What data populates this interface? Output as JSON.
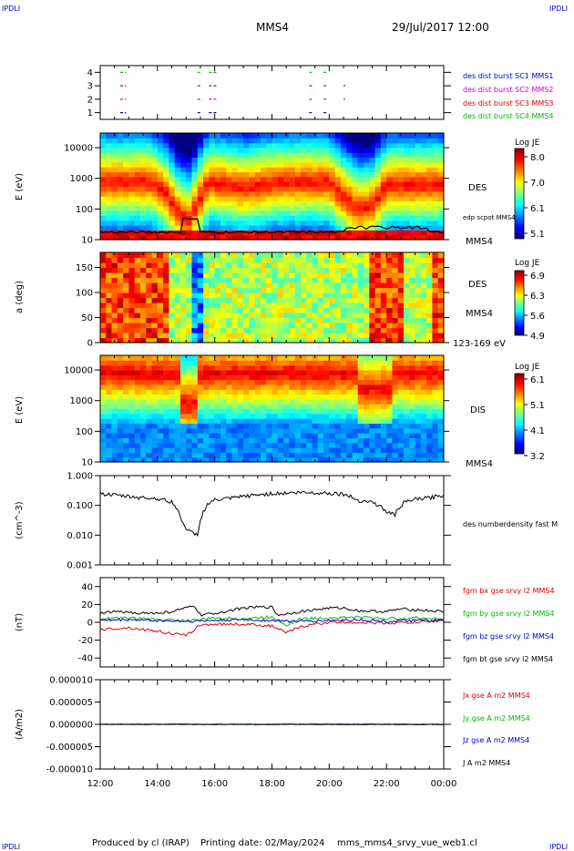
{
  "corner_labels": {
    "top_left": "IPDLI",
    "top_right": "IPDLI",
    "bottom_left": "IPDLI",
    "bottom_right": "IPDLI"
  },
  "header": {
    "spacecraft": "MMS4",
    "datetime": "29/Jul/2017 12:00"
  },
  "footer": {
    "produced_by": "Produced by cl (IRAP)",
    "printing_date": "Printing date: 02/May/2024",
    "script_name": "mms_mms4_srvy_vue_web1.cl"
  },
  "colors": {
    "blue": "#0000cc",
    "magenta": "#cc00cc",
    "red": "#dd0000",
    "green": "#00bb00",
    "black": "#000000"
  },
  "chart_data": [
    {
      "type": "scatter",
      "panel": "burst-availability",
      "ylim": [
        0.5,
        4.5
      ],
      "yticks": [
        "1",
        "2",
        "3",
        "4"
      ],
      "x_hours": [
        12,
        24
      ],
      "series": [
        {
          "name": "des dist burst SC1 MMS1",
          "row": 1,
          "color": "#0000cc",
          "segments": [
            [
              12.7,
              12.9
            ],
            [
              15.4,
              15.5
            ],
            [
              15.8,
              16.1
            ],
            [
              19.3,
              19.4
            ],
            [
              19.8,
              19.9
            ]
          ]
        },
        {
          "name": "des dist burst SC2 MMS2",
          "row": 2,
          "color": "#cc00cc",
          "segments": [
            [
              12.7,
              12.9
            ],
            [
              15.4,
              15.5
            ],
            [
              15.8,
              16.1
            ],
            [
              19.3,
              19.4
            ],
            [
              19.8,
              19.9
            ],
            [
              20.5,
              20.55
            ]
          ]
        },
        {
          "name": "des dist burst SC3 MMS3",
          "row": 3,
          "color": "#dd0000",
          "segments": [
            [
              12.7,
              12.9
            ],
            [
              15.4,
              15.5
            ],
            [
              15.8,
              16.1
            ],
            [
              19.3,
              19.4
            ],
            [
              19.8,
              19.9
            ],
            [
              20.5,
              20.55
            ]
          ]
        },
        {
          "name": "des dist burst SC4 MMS4",
          "row": 4,
          "color": "#00bb00",
          "segments": [
            [
              12.7,
              12.9
            ],
            [
              15.4,
              15.5
            ],
            [
              15.8,
              16.1
            ],
            [
              19.3,
              19.4
            ],
            [
              19.8,
              19.9
            ]
          ]
        }
      ]
    },
    {
      "type": "heatmap",
      "panel": "des-energy-spectrogram",
      "ylabel": "E (eV)",
      "yscale": "log",
      "ylim": [
        10,
        30000
      ],
      "yticks": [
        "10",
        "100",
        "1000",
        "10000"
      ],
      "instrument": "DES",
      "spacecraft": "MMS4",
      "overlay": "edp scpot MMS4",
      "colorbar": {
        "title": "Log JE",
        "range": [
          5.1,
          8.1
        ],
        "ticks": [
          "8.0",
          "7.0",
          "6.1",
          "5.1"
        ]
      },
      "profile": {
        "times": [
          12.0,
          13.8,
          14.3,
          14.8,
          15.1,
          15.4,
          15.8,
          17.0,
          18.2,
          20.0,
          20.4,
          21.0,
          21.5,
          22.0,
          22.6,
          24.0
        ],
        "peak_log_energy": [
          2.9,
          2.9,
          2.5,
          1.8,
          1.7,
          2.2,
          2.9,
          2.7,
          2.9,
          2.9,
          2.5,
          2.0,
          2.1,
          2.8,
          2.8,
          2.8
        ]
      }
    },
    {
      "type": "heatmap",
      "panel": "des-pitch-angle",
      "ylabel": "a (deg)",
      "ylim": [
        0,
        180
      ],
      "yticks": [
        "0",
        "50",
        "100",
        "150"
      ],
      "instrument": "DES",
      "spacecraft": "MMS4",
      "energy_range": "123-169 eV",
      "colorbar": {
        "title": "Log JE",
        "range": [
          4.9,
          6.9
        ],
        "ticks": [
          "6.9",
          "6.3",
          "5.6",
          "4.9"
        ]
      }
    },
    {
      "type": "heatmap",
      "panel": "dis-energy-spectrogram",
      "ylabel": "E (eV)",
      "yscale": "log",
      "ylim": [
        10,
        30000
      ],
      "yticks": [
        "10",
        "100",
        "1000",
        "10000"
      ],
      "instrument": "DIS",
      "spacecraft": "MMS4",
      "colorbar": {
        "title": "Log JE",
        "range": [
          3.2,
          6.1
        ],
        "ticks": [
          "6.1",
          "5.1",
          "4.1",
          "3.2"
        ]
      }
    },
    {
      "type": "line",
      "panel": "number-density",
      "ylabel": "(cm^-3)",
      "yscale": "log",
      "ylim": [
        0.001,
        1.0
      ],
      "yticks": [
        "1.000",
        "0.100",
        "0.010",
        "0.001"
      ],
      "series": [
        {
          "name": "des numberdensity fast M",
          "color": "#000000",
          "x": [
            12.0,
            12.5,
            13.0,
            13.5,
            14.0,
            14.5,
            14.8,
            15.0,
            15.2,
            15.4,
            15.5,
            15.8,
            16.0,
            16.5,
            17.0,
            18.0,
            19.0,
            20.0,
            20.5,
            21.0,
            21.5,
            22.0,
            22.3,
            22.6,
            23.0,
            23.5,
            24.0
          ],
          "y": [
            0.25,
            0.22,
            0.2,
            0.18,
            0.17,
            0.13,
            0.04,
            0.015,
            0.012,
            0.01,
            0.03,
            0.12,
            0.15,
            0.17,
            0.2,
            0.25,
            0.27,
            0.26,
            0.24,
            0.15,
            0.13,
            0.06,
            0.05,
            0.12,
            0.16,
            0.18,
            0.22
          ]
        }
      ]
    },
    {
      "type": "line",
      "panel": "magnetic-field",
      "ylabel": "(nT)",
      "ylim": [
        -50,
        50
      ],
      "yticks": [
        "40",
        "20",
        "0",
        "-20",
        "-40"
      ],
      "series": [
        {
          "name": "fgm bx gse srvy l2 MMS4",
          "color": "#dd0000",
          "x": [
            12.0,
            13.0,
            14.0,
            15.0,
            15.5,
            16.0,
            17.0,
            18.0,
            18.5,
            19.0,
            19.5,
            20.0,
            21.0,
            22.0,
            23.0,
            24.0
          ],
          "y": [
            -8,
            -6,
            -10,
            -15,
            -3,
            -2,
            -2,
            -4,
            -12,
            -5,
            -2,
            0,
            0,
            -1,
            0,
            2
          ]
        },
        {
          "name": "fgm by gse srvy l2 MMS4",
          "color": "#00bb00",
          "x": [
            12.0,
            13.0,
            14.0,
            15.0,
            15.5,
            16.0,
            17.0,
            18.0,
            18.5,
            19.0,
            20.0,
            21.0,
            22.0,
            23.0,
            24.0
          ],
          "y": [
            4,
            5,
            3,
            2,
            3,
            5,
            4,
            6,
            -3,
            4,
            5,
            6,
            4,
            5,
            4
          ]
        },
        {
          "name": "fgm bz gse srvy l2 MMS4",
          "color": "#0000cc",
          "x": [
            12.0,
            13.0,
            14.0,
            15.0,
            16.0,
            17.0,
            18.0,
            19.0,
            20.0,
            21.0,
            22.0,
            23.0,
            24.0
          ],
          "y": [
            2,
            3,
            2,
            1,
            2,
            3,
            2,
            1,
            2,
            3,
            1,
            2,
            2
          ]
        },
        {
          "name": "fgm bt gse srvy l2 MMS4",
          "color": "#000000",
          "x": [
            12.0,
            12.5,
            13.0,
            14.0,
            14.5,
            15.0,
            15.3,
            15.5,
            16.0,
            17.0,
            17.5,
            18.0,
            18.2,
            19.0,
            20.0,
            20.5,
            21.0,
            22.0,
            22.5,
            23.0,
            24.0
          ],
          "y": [
            10,
            12,
            11,
            10,
            12,
            16,
            18,
            8,
            10,
            16,
            17,
            17,
            8,
            12,
            16,
            16,
            13,
            12,
            15,
            14,
            12
          ]
        }
      ]
    },
    {
      "type": "line",
      "panel": "current-density",
      "ylabel": "(A/m2)",
      "ylim": [
        -0.0001,
        0.0001
      ],
      "yticks": [
        "0.000010",
        "0.000005",
        "0.000000",
        "-0.000005",
        "-0.000010"
      ],
      "series": [
        {
          "name": "Jx gse A m2 MMS4",
          "color": "#dd0000",
          "x": [
            12,
            24
          ],
          "y": [
            0,
            0
          ]
        },
        {
          "name": "Jy gse A m2 MMS4",
          "color": "#00bb00",
          "x": [
            12,
            24
          ],
          "y": [
            0,
            0
          ]
        },
        {
          "name": "Jz gse A m2 MMS4",
          "color": "#0000cc",
          "x": [
            12,
            24
          ],
          "y": [
            0,
            0
          ]
        },
        {
          "name": "J A m2 MMS4",
          "color": "#000000",
          "x": [
            12,
            24
          ],
          "y": [
            0,
            0
          ]
        }
      ]
    }
  ],
  "time_axis": {
    "range_hours": [
      12,
      24
    ],
    "tick_labels": [
      "12:00",
      "14:00",
      "16:00",
      "18:00",
      "20:00",
      "22:00",
      "00:00"
    ]
  }
}
